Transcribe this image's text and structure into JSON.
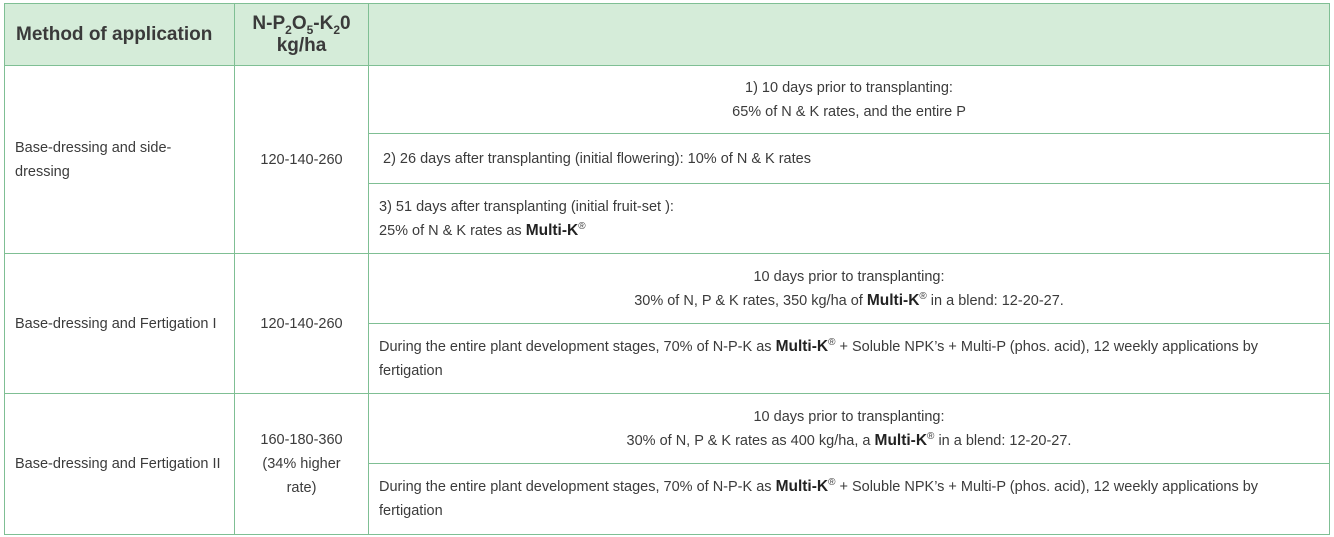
{
  "header": {
    "method": "Method of application",
    "npk_n_p": "N-P",
    "npk_sub2": "2",
    "npk_o": "O",
    "npk_sub5": "5",
    "npk_k": "-K",
    "npk_sub_k": "2",
    "npk_end": "0",
    "unit": "kg/ha",
    "detail": ""
  },
  "groups": [
    {
      "method": "Base-dressing and side-dressing",
      "method_line1": "Base-dressing and side-",
      "method_line2": "dressing",
      "rate": "120-140-260",
      "steps": [
        {
          "line1": "1) 10 days prior to transplanting:",
          "line2": "65% of N & K rates, and the entire P"
        },
        {
          "line1": "2)  26 days after transplanting (initial flowering):  10% of N & K rates"
        },
        {
          "line1": " 3) 51 days after transplanting (initial fruit-set ):",
          "line2_pre": "25% of N & K rates as ",
          "brand": "Multi-K",
          "reg": "®"
        }
      ]
    },
    {
      "method": "Base-dressing and Fertigation I",
      "rate": "120-140-260",
      "steps": [
        {
          "line1": "10 days prior to transplanting:",
          "line2_pre": "30% of N, P & K rates, 350 kg/ha of ",
          "brand": "Multi-K",
          "reg": "®",
          "line2_post": " in a blend: 12-20-27."
        },
        {
          "pre": " During the entire plant development stages, 70% of N-P-K as ",
          "brand": "Multi-K",
          "reg": "®",
          "post": " + Soluble NPK’s + Multi-P (phos. acid), 12 weekly applications by fertigation"
        }
      ]
    },
    {
      "method": "Base-dressing and Fertigation II",
      "rate_line1": "160-180-360",
      "rate_line2": "(34% higher",
      "rate_line3": "rate)",
      "steps": [
        {
          "line1": "10 days prior to transplanting:",
          "line2_pre": "30% of N, P & K rates as 400 kg/ha, a ",
          "brand": "Multi-K",
          "reg": "®",
          "line2_post": " in a blend: 12-20-27."
        },
        {
          "pre": " During the entire plant development stages, 70% of N-P-K as ",
          "brand": "Multi-K",
          "reg": "®",
          "post": " + Soluble NPK’s + Multi-P (phos. acid), 12 weekly applications by fertigation"
        }
      ]
    }
  ],
  "colors": {
    "header_bg": "#d5ecd9",
    "border": "#7fbf94",
    "text": "#3b3b3b"
  }
}
